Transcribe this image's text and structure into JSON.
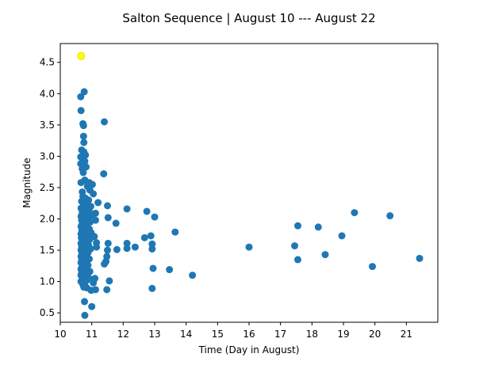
{
  "chart_data": {
    "type": "scatter",
    "title": "Salton Sequence | August 10 --- August 22",
    "xlabel": "Time (Day in August)",
    "ylabel": "Magnitude",
    "xlim": [
      10,
      22
    ],
    "ylim": [
      0.35,
      4.8
    ],
    "xticks": [
      10,
      11,
      12,
      13,
      14,
      15,
      16,
      17,
      18,
      19,
      20,
      21
    ],
    "yticks": [
      0.5,
      1.0,
      1.5,
      2.0,
      2.5,
      3.0,
      3.5,
      4.0,
      4.5
    ],
    "grid": false,
    "colors": {
      "points": "#1f77b4",
      "highlight": "#ffff00",
      "highlight_edge": "#e6e600"
    },
    "highlight": {
      "x": 10.66,
      "y": 4.6
    },
    "series": [
      {
        "points": [
          [
            10.65,
            3.95
          ],
          [
            10.76,
            4.03
          ],
          [
            10.66,
            3.73
          ],
          [
            10.72,
            3.52
          ],
          [
            10.74,
            3.49
          ],
          [
            10.74,
            3.32
          ],
          [
            10.75,
            3.22
          ],
          [
            10.68,
            3.1
          ],
          [
            10.75,
            3.07
          ],
          [
            10.8,
            3.02
          ],
          [
            10.65,
            2.99
          ],
          [
            10.7,
            2.96
          ],
          [
            10.78,
            2.92
          ],
          [
            10.65,
            2.88
          ],
          [
            10.72,
            2.84
          ],
          [
            10.82,
            2.83
          ],
          [
            10.7,
            2.8
          ],
          [
            10.73,
            2.74
          ],
          [
            10.78,
            2.62
          ],
          [
            10.66,
            2.58
          ],
          [
            10.92,
            2.58
          ],
          [
            11.02,
            2.55
          ],
          [
            10.86,
            2.52
          ],
          [
            10.94,
            2.46
          ],
          [
            11.05,
            2.4
          ],
          [
            10.7,
            2.43
          ],
          [
            10.72,
            2.36
          ],
          [
            10.8,
            2.33
          ],
          [
            10.9,
            2.3
          ],
          [
            10.68,
            2.28
          ],
          [
            10.74,
            2.24
          ],
          [
            10.85,
            2.22
          ],
          [
            10.97,
            2.2
          ],
          [
            10.66,
            2.17
          ],
          [
            10.78,
            2.15
          ],
          [
            10.92,
            2.12
          ],
          [
            10.7,
            2.1
          ],
          [
            10.83,
            2.08
          ],
          [
            11.0,
            2.06
          ],
          [
            10.66,
            2.04
          ],
          [
            10.75,
            2.02
          ],
          [
            10.88,
            2.0
          ],
          [
            10.68,
            1.98
          ],
          [
            10.8,
            1.96
          ],
          [
            10.95,
            1.95
          ],
          [
            10.7,
            1.92
          ],
          [
            10.84,
            1.9
          ],
          [
            10.66,
            1.88
          ],
          [
            10.77,
            1.86
          ],
          [
            10.92,
            1.84
          ],
          [
            10.69,
            1.82
          ],
          [
            10.82,
            1.8
          ],
          [
            10.98,
            1.78
          ],
          [
            10.66,
            1.76
          ],
          [
            10.75,
            1.74
          ],
          [
            10.88,
            1.72
          ],
          [
            10.67,
            1.7
          ],
          [
            10.79,
            1.68
          ],
          [
            10.93,
            1.67
          ],
          [
            10.7,
            1.65
          ],
          [
            10.84,
            1.63
          ],
          [
            10.66,
            1.61
          ],
          [
            10.75,
            1.59
          ],
          [
            10.9,
            1.58
          ],
          [
            10.68,
            1.56
          ],
          [
            10.8,
            1.54
          ],
          [
            10.96,
            1.52
          ],
          [
            10.66,
            1.5
          ],
          [
            10.76,
            1.48
          ],
          [
            10.88,
            1.46
          ],
          [
            10.69,
            1.44
          ],
          [
            10.82,
            1.42
          ],
          [
            10.66,
            1.4
          ],
          [
            10.76,
            1.38
          ],
          [
            10.92,
            1.36
          ],
          [
            10.68,
            1.34
          ],
          [
            10.8,
            1.32
          ],
          [
            10.66,
            1.3
          ],
          [
            10.75,
            1.28
          ],
          [
            10.88,
            1.26
          ],
          [
            10.7,
            1.24
          ],
          [
            10.82,
            1.22
          ],
          [
            10.66,
            1.2
          ],
          [
            10.76,
            1.18
          ],
          [
            10.94,
            1.16
          ],
          [
            10.68,
            1.14
          ],
          [
            10.8,
            1.12
          ],
          [
            10.66,
            1.1
          ],
          [
            10.75,
            1.08
          ],
          [
            10.9,
            1.06
          ],
          [
            10.7,
            1.04
          ],
          [
            10.84,
            1.02
          ],
          [
            10.66,
            1.0
          ],
          [
            10.78,
            0.98
          ],
          [
            10.72,
            0.95
          ],
          [
            10.75,
            0.91
          ],
          [
            10.84,
            0.9
          ],
          [
            10.98,
            0.86
          ],
          [
            10.77,
            0.68
          ],
          [
            11.0,
            0.6
          ],
          [
            10.78,
            0.46
          ],
          [
            11.12,
            0.87
          ],
          [
            11.15,
            1.62
          ],
          [
            11.1,
            1.05
          ],
          [
            11.05,
            0.98
          ],
          [
            11.08,
            1.72
          ],
          [
            11.12,
            1.98
          ],
          [
            11.12,
            2.09
          ],
          [
            11.15,
            1.55
          ],
          [
            11.2,
            2.26
          ],
          [
            11.38,
            2.72
          ],
          [
            11.4,
            3.55
          ],
          [
            11.4,
            1.28
          ],
          [
            11.45,
            1.32
          ],
          [
            11.48,
            1.4
          ],
          [
            11.48,
            0.87
          ],
          [
            11.5,
            1.5
          ],
          [
            11.52,
            1.61
          ],
          [
            11.5,
            2.21
          ],
          [
            11.52,
            2.02
          ],
          [
            11.56,
            1.01
          ],
          [
            11.77,
            1.93
          ],
          [
            11.8,
            1.51
          ],
          [
            12.12,
            2.16
          ],
          [
            12.12,
            1.61
          ],
          [
            12.12,
            1.53
          ],
          [
            12.38,
            1.55
          ],
          [
            12.68,
            1.7
          ],
          [
            12.75,
            2.12
          ],
          [
            12.88,
            1.73
          ],
          [
            12.92,
            1.6
          ],
          [
            12.92,
            1.52
          ],
          [
            12.95,
            1.21
          ],
          [
            12.92,
            0.89
          ],
          [
            13.0,
            2.03
          ],
          [
            13.47,
            1.19
          ],
          [
            13.65,
            1.79
          ],
          [
            14.2,
            1.1
          ],
          [
            16.0,
            1.55
          ],
          [
            17.45,
            1.57
          ],
          [
            17.55,
            1.89
          ],
          [
            17.55,
            1.35
          ],
          [
            18.2,
            1.87
          ],
          [
            18.42,
            1.43
          ],
          [
            18.95,
            1.73
          ],
          [
            19.35,
            2.1
          ],
          [
            19.92,
            1.24
          ],
          [
            20.48,
            2.05
          ],
          [
            21.42,
            1.37
          ]
        ]
      }
    ]
  }
}
